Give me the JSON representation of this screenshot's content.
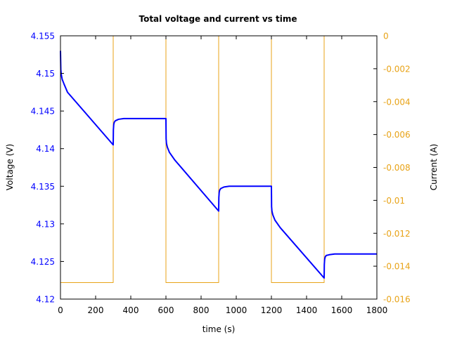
{
  "chart_data": {
    "type": "line",
    "title": "Total voltage and current vs time",
    "xlabel": "time (s)",
    "ylabel_left": "Voltage (V)",
    "ylabel_right": "Current (A)",
    "xlim": [
      0,
      1800
    ],
    "ylim_left": [
      4.12,
      4.155
    ],
    "ylim_right": [
      -0.016,
      0
    ],
    "x_ticks": [
      0,
      200,
      400,
      600,
      800,
      1000,
      1200,
      1400,
      1600,
      1800
    ],
    "y_left_ticks": [
      "4.12",
      "4.125",
      "4.13",
      "4.135",
      "4.14",
      "4.145",
      "4.15",
      "4.155"
    ],
    "y_right_ticks": [
      "-0.016",
      "-0.014",
      "-0.012",
      "-0.01",
      "-0.008",
      "-0.006",
      "-0.004",
      "-0.002",
      "0"
    ],
    "grid": false,
    "colors": {
      "voltage": "#0000ff",
      "current": "#e8a317",
      "left_axis_text": "#0000ff",
      "right_axis_text": "#e8a317"
    },
    "series": [
      {
        "axis": "left",
        "x": [
          0,
          2,
          5,
          10,
          20,
          40,
          300,
          301,
          303,
          306,
          312,
          330,
          360,
          600,
          601,
          603,
          608,
          620,
          650,
          900,
          901,
          903,
          906,
          912,
          930,
          960,
          1200,
          1201,
          1203,
          1208,
          1220,
          1250,
          1500,
          1501,
          1503,
          1506,
          1512,
          1530,
          1560,
          1800
        ],
        "y": [
          4.153,
          4.1505,
          4.1498,
          4.1492,
          4.1486,
          4.1475,
          4.1405,
          4.1425,
          4.1432,
          4.1435,
          4.1437,
          4.1439,
          4.144,
          4.144,
          4.1413,
          4.1407,
          4.1402,
          4.1395,
          4.1385,
          4.1317,
          4.1335,
          4.1342,
          4.1345,
          4.1347,
          4.1349,
          4.135,
          4.135,
          4.1323,
          4.1317,
          4.1312,
          4.1305,
          4.1295,
          4.1228,
          4.1246,
          4.1253,
          4.1256,
          4.1258,
          4.1259,
          4.126,
          4.126
        ]
      },
      {
        "axis": "right",
        "x": [
          0,
          0,
          300,
          300,
          600,
          600,
          900,
          900,
          1200,
          1200,
          1500,
          1500,
          1800
        ],
        "y": [
          0,
          -0.015,
          -0.015,
          0,
          0,
          -0.015,
          -0.015,
          0,
          0,
          -0.015,
          -0.015,
          0,
          0
        ]
      }
    ]
  }
}
